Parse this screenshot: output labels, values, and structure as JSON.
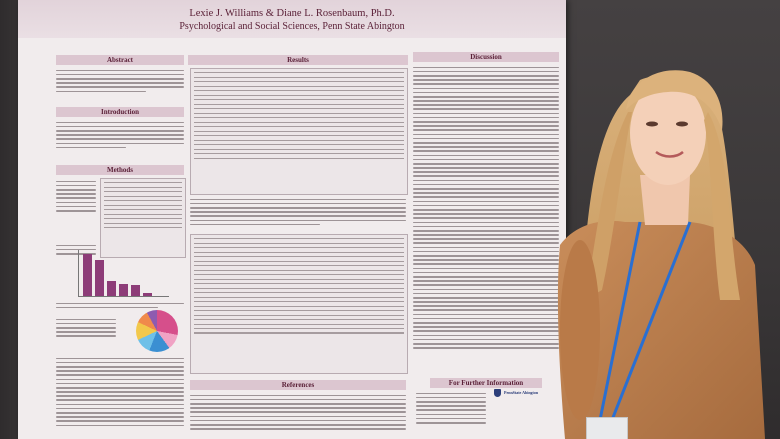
{
  "poster": {
    "authors": "Lexie J. Williams & Diane L. Rosenbaum, Ph.D.",
    "affiliation": "Psychological and Social Sciences, Penn State Abington",
    "sections": {
      "abstract": "Abstract",
      "introduction": "Introduction",
      "methods": "Methods",
      "results": "Results",
      "discussion": "Discussion",
      "references": "References",
      "further_info": "For Further Information"
    },
    "logo_text": "PennState Abington"
  },
  "colors": {
    "poster_bg": "#f1eced",
    "header_band": "#dcc6d0",
    "title_text": "#5b2138",
    "chart_purple": "#8d3c78"
  }
}
